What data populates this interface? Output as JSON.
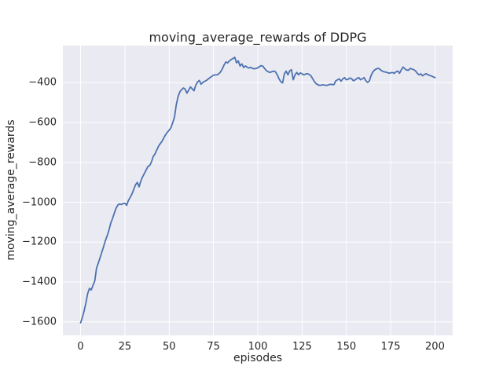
{
  "figure": {
    "title": "moving_average_rewards of DDPG",
    "xlabel": "episodes",
    "ylabel": "moving_average_rewards",
    "background_color": "#ffffff",
    "axes_background_color": "#eaeaf2",
    "grid_color": "#ffffff",
    "text_color": "#262626",
    "line_color": "#4c72b0"
  },
  "chart_data": {
    "type": "line",
    "title": "moving_average_rewards of DDPG",
    "xlabel": "episodes",
    "ylabel": "moving_average_rewards",
    "legend": false,
    "grid": true,
    "grid_style": "seaborn-darkgrid",
    "xlim": [
      -10,
      210
    ],
    "ylim": [
      -1668,
      -213
    ],
    "xticks": [
      0,
      25,
      50,
      75,
      100,
      125,
      150,
      175,
      200
    ],
    "yticks": [
      -400,
      -600,
      -800,
      -1000,
      -1200,
      -1400,
      -1600
    ],
    "series": [
      {
        "name": "moving_average_rewards",
        "color": "#4c72b0",
        "points": [
          [
            0,
            -1605
          ],
          [
            1,
            -1578
          ],
          [
            2,
            -1545
          ],
          [
            3,
            -1505
          ],
          [
            4,
            -1458
          ],
          [
            5,
            -1432
          ],
          [
            6,
            -1440
          ],
          [
            7,
            -1417
          ],
          [
            8,
            -1395
          ],
          [
            9,
            -1330
          ],
          [
            10,
            -1305
          ],
          [
            11,
            -1278
          ],
          [
            12,
            -1250
          ],
          [
            13,
            -1222
          ],
          [
            14,
            -1192
          ],
          [
            15,
            -1168
          ],
          [
            16,
            -1140
          ],
          [
            17,
            -1105
          ],
          [
            18,
            -1082
          ],
          [
            19,
            -1055
          ],
          [
            20,
            -1030
          ],
          [
            21,
            -1014
          ],
          [
            22,
            -1008
          ],
          [
            23,
            -1011
          ],
          [
            24,
            -1006
          ],
          [
            25,
            -1005
          ],
          [
            26,
            -1015
          ],
          [
            27,
            -990
          ],
          [
            28,
            -975
          ],
          [
            29,
            -958
          ],
          [
            30,
            -935
          ],
          [
            31,
            -912
          ],
          [
            32,
            -900
          ],
          [
            33,
            -922
          ],
          [
            34,
            -893
          ],
          [
            35,
            -872
          ],
          [
            36,
            -855
          ],
          [
            37,
            -838
          ],
          [
            38,
            -820
          ],
          [
            39,
            -815
          ],
          [
            40,
            -797
          ],
          [
            41,
            -770
          ],
          [
            42,
            -757
          ],
          [
            43,
            -737
          ],
          [
            44,
            -718
          ],
          [
            45,
            -705
          ],
          [
            46,
            -693
          ],
          [
            47,
            -676
          ],
          [
            48,
            -660
          ],
          [
            49,
            -648
          ],
          [
            50,
            -638
          ],
          [
            51,
            -625
          ],
          [
            52,
            -600
          ],
          [
            53,
            -572
          ],
          [
            54,
            -510
          ],
          [
            55,
            -470
          ],
          [
            56,
            -445
          ],
          [
            57,
            -435
          ],
          [
            58,
            -426
          ],
          [
            59,
            -432
          ],
          [
            60,
            -452
          ],
          [
            61,
            -437
          ],
          [
            62,
            -421
          ],
          [
            63,
            -430
          ],
          [
            64,
            -440
          ],
          [
            65,
            -412
          ],
          [
            66,
            -396
          ],
          [
            67,
            -388
          ],
          [
            68,
            -407
          ],
          [
            69,
            -398
          ],
          [
            70,
            -393
          ],
          [
            71,
            -388
          ],
          [
            72,
            -381
          ],
          [
            73,
            -374
          ],
          [
            74,
            -368
          ],
          [
            75,
            -362
          ],
          [
            76,
            -360
          ],
          [
            77,
            -360
          ],
          [
            78,
            -355
          ],
          [
            79,
            -345
          ],
          [
            80,
            -330
          ],
          [
            81,
            -310
          ],
          [
            82,
            -295
          ],
          [
            83,
            -300
          ],
          [
            84,
            -290
          ],
          [
            85,
            -283
          ],
          [
            86,
            -278
          ],
          [
            87,
            -272
          ],
          [
            88,
            -300
          ],
          [
            89,
            -290
          ],
          [
            90,
            -316
          ],
          [
            91,
            -305
          ],
          [
            92,
            -323
          ],
          [
            93,
            -315
          ],
          [
            94,
            -322
          ],
          [
            95,
            -326
          ],
          [
            96,
            -322
          ],
          [
            97,
            -328
          ],
          [
            98,
            -330
          ],
          [
            99,
            -328
          ],
          [
            100,
            -325
          ],
          [
            101,
            -318
          ],
          [
            102,
            -314
          ],
          [
            103,
            -318
          ],
          [
            104,
            -330
          ],
          [
            105,
            -340
          ],
          [
            106,
            -345
          ],
          [
            107,
            -348
          ],
          [
            108,
            -344
          ],
          [
            109,
            -341
          ],
          [
            110,
            -345
          ],
          [
            111,
            -360
          ],
          [
            112,
            -380
          ],
          [
            113,
            -395
          ],
          [
            114,
            -400
          ],
          [
            115,
            -355
          ],
          [
            116,
            -341
          ],
          [
            117,
            -360
          ],
          [
            118,
            -340
          ],
          [
            119,
            -334
          ],
          [
            120,
            -385
          ],
          [
            121,
            -360
          ],
          [
            122,
            -348
          ],
          [
            123,
            -360
          ],
          [
            124,
            -350
          ],
          [
            125,
            -355
          ],
          [
            126,
            -360
          ],
          [
            127,
            -356
          ],
          [
            128,
            -354
          ],
          [
            129,
            -358
          ],
          [
            130,
            -365
          ],
          [
            131,
            -380
          ],
          [
            132,
            -395
          ],
          [
            133,
            -405
          ],
          [
            134,
            -410
          ],
          [
            135,
            -413
          ],
          [
            136,
            -411
          ],
          [
            137,
            -410
          ],
          [
            138,
            -412
          ],
          [
            139,
            -413
          ],
          [
            140,
            -410
          ],
          [
            141,
            -407
          ],
          [
            142,
            -409
          ],
          [
            143,
            -409
          ],
          [
            144,
            -390
          ],
          [
            145,
            -385
          ],
          [
            146,
            -380
          ],
          [
            147,
            -392
          ],
          [
            148,
            -380
          ],
          [
            149,
            -374
          ],
          [
            150,
            -385
          ],
          [
            151,
            -382
          ],
          [
            152,
            -376
          ],
          [
            153,
            -380
          ],
          [
            154,
            -390
          ],
          [
            155,
            -385
          ],
          [
            156,
            -378
          ],
          [
            157,
            -374
          ],
          [
            158,
            -385
          ],
          [
            159,
            -380
          ],
          [
            160,
            -374
          ],
          [
            161,
            -390
          ],
          [
            162,
            -398
          ],
          [
            163,
            -390
          ],
          [
            164,
            -362
          ],
          [
            165,
            -345
          ],
          [
            166,
            -335
          ],
          [
            167,
            -330
          ],
          [
            168,
            -327
          ],
          [
            169,
            -333
          ],
          [
            170,
            -340
          ],
          [
            171,
            -344
          ],
          [
            172,
            -346
          ],
          [
            173,
            -348
          ],
          [
            174,
            -352
          ],
          [
            175,
            -350
          ],
          [
            176,
            -348
          ],
          [
            177,
            -353
          ],
          [
            178,
            -345
          ],
          [
            179,
            -341
          ],
          [
            180,
            -352
          ],
          [
            181,
            -335
          ],
          [
            182,
            -321
          ],
          [
            183,
            -330
          ],
          [
            184,
            -336
          ],
          [
            185,
            -337
          ],
          [
            186,
            -328
          ],
          [
            187,
            -331
          ],
          [
            188,
            -334
          ],
          [
            189,
            -340
          ],
          [
            190,
            -352
          ],
          [
            191,
            -360
          ],
          [
            192,
            -355
          ],
          [
            193,
            -365
          ],
          [
            194,
            -358
          ],
          [
            195,
            -354
          ],
          [
            196,
            -360
          ],
          [
            197,
            -363
          ],
          [
            198,
            -366
          ],
          [
            199,
            -370
          ],
          [
            200,
            -374
          ]
        ]
      }
    ]
  }
}
